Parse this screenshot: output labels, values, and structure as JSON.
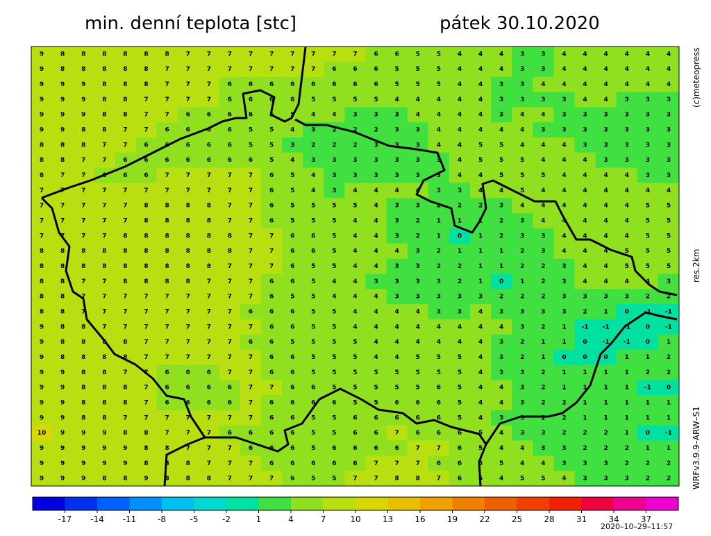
{
  "header": {
    "title": "min. denní teplota [stc]",
    "date": "pátek 30.10.2020"
  },
  "side_labels": {
    "copyright": "(c)meteopress",
    "resolution": "res.2km",
    "model": "WRFv3.9.9–ARW–S1"
  },
  "timestamp": "2020–10–29–11:57",
  "grid": {
    "values": [
      [
        9,
        8,
        8,
        8,
        8,
        8,
        8,
        7,
        7,
        7,
        7,
        7,
        7,
        7,
        7,
        7,
        6,
        6,
        5,
        5,
        4,
        4,
        4,
        3,
        3,
        4,
        4,
        4,
        4,
        4,
        4
      ],
      [
        9,
        8,
        8,
        8,
        8,
        8,
        7,
        7,
        7,
        7,
        7,
        7,
        7,
        7,
        6,
        6,
        6,
        5,
        5,
        5,
        4,
        4,
        4,
        3,
        3,
        4,
        4,
        4,
        4,
        4,
        4
      ],
      [
        9,
        9,
        9,
        8,
        8,
        8,
        7,
        7,
        7,
        6,
        6,
        6,
        6,
        6,
        6,
        6,
        6,
        5,
        5,
        5,
        4,
        4,
        3,
        3,
        4,
        4,
        4,
        4,
        4,
        4,
        4
      ],
      [
        9,
        9,
        9,
        8,
        8,
        7,
        7,
        7,
        7,
        6,
        6,
        6,
        6,
        5,
        5,
        5,
        5,
        4,
        4,
        4,
        4,
        4,
        3,
        3,
        3,
        3,
        4,
        4,
        3,
        3,
        3
      ],
      [
        9,
        9,
        9,
        8,
        8,
        7,
        7,
        6,
        6,
        6,
        6,
        5,
        5,
        4,
        4,
        3,
        3,
        3,
        4,
        4,
        4,
        4,
        3,
        4,
        4,
        3,
        3,
        3,
        3,
        3,
        3
      ],
      [
        9,
        9,
        8,
        8,
        7,
        7,
        6,
        6,
        6,
        6,
        5,
        5,
        4,
        3,
        2,
        2,
        2,
        3,
        3,
        4,
        4,
        4,
        4,
        4,
        3,
        3,
        3,
        3,
        3,
        3,
        3
      ],
      [
        8,
        8,
        8,
        7,
        7,
        6,
        6,
        6,
        6,
        6,
        5,
        5,
        3,
        2,
        2,
        2,
        3,
        3,
        3,
        4,
        4,
        5,
        5,
        4,
        4,
        4,
        3,
        3,
        3,
        3,
        3
      ],
      [
        8,
        8,
        7,
        7,
        6,
        6,
        6,
        6,
        6,
        6,
        6,
        5,
        4,
        3,
        3,
        3,
        3,
        3,
        3,
        3,
        4,
        5,
        5,
        5,
        4,
        4,
        4,
        3,
        3,
        3,
        3
      ],
      [
        8,
        7,
        7,
        6,
        6,
        6,
        7,
        7,
        7,
        7,
        7,
        6,
        5,
        4,
        3,
        3,
        3,
        3,
        3,
        3,
        4,
        4,
        5,
        5,
        5,
        4,
        4,
        4,
        4,
        3,
        3
      ],
      [
        7,
        7,
        7,
        7,
        7,
        7,
        7,
        7,
        7,
        7,
        7,
        6,
        5,
        4,
        3,
        4,
        4,
        4,
        4,
        3,
        3,
        4,
        4,
        5,
        4,
        4,
        4,
        4,
        4,
        4,
        4
      ],
      [
        7,
        7,
        7,
        7,
        7,
        8,
        8,
        8,
        8,
        7,
        7,
        6,
        5,
        5,
        5,
        5,
        4,
        3,
        3,
        2,
        2,
        2,
        3,
        4,
        4,
        4,
        4,
        4,
        4,
        5,
        5
      ],
      [
        7,
        7,
        7,
        7,
        7,
        8,
        8,
        8,
        8,
        7,
        7,
        6,
        5,
        5,
        5,
        4,
        4,
        3,
        2,
        1,
        1,
        1,
        2,
        3,
        4,
        4,
        4,
        4,
        4,
        5,
        5
      ],
      [
        7,
        7,
        7,
        7,
        8,
        8,
        8,
        8,
        8,
        8,
        7,
        7,
        6,
        6,
        5,
        4,
        4,
        3,
        2,
        1,
        0,
        1,
        2,
        3,
        3,
        4,
        4,
        4,
        4,
        5,
        5
      ],
      [
        8,
        8,
        8,
        8,
        8,
        8,
        8,
        8,
        8,
        8,
        7,
        7,
        6,
        6,
        5,
        4,
        4,
        4,
        3,
        2,
        1,
        1,
        1,
        2,
        3,
        4,
        4,
        4,
        5,
        5,
        5
      ],
      [
        8,
        8,
        8,
        8,
        8,
        8,
        8,
        8,
        8,
        7,
        7,
        7,
        6,
        5,
        5,
        4,
        4,
        3,
        3,
        2,
        2,
        1,
        1,
        2,
        2,
        3,
        4,
        4,
        5,
        5,
        5
      ],
      [
        8,
        8,
        7,
        7,
        8,
        8,
        8,
        8,
        7,
        7,
        7,
        6,
        6,
        5,
        4,
        4,
        3,
        3,
        3,
        3,
        2,
        1,
        0,
        1,
        2,
        3,
        4,
        4,
        4,
        4,
        3
      ],
      [
        8,
        8,
        7,
        7,
        7,
        7,
        7,
        7,
        7,
        7,
        7,
        6,
        5,
        5,
        4,
        4,
        4,
        3,
        3,
        3,
        3,
        3,
        2,
        2,
        2,
        3,
        3,
        3,
        3,
        2,
        2
      ],
      [
        8,
        8,
        7,
        7,
        7,
        7,
        7,
        7,
        7,
        7,
        6,
        6,
        6,
        5,
        5,
        4,
        4,
        4,
        4,
        3,
        3,
        4,
        3,
        3,
        3,
        3,
        2,
        1,
        0,
        -1,
        -1
      ],
      [
        9,
        8,
        8,
        7,
        7,
        7,
        7,
        7,
        7,
        7,
        7,
        6,
        6,
        5,
        5,
        4,
        4,
        4,
        4,
        4,
        4,
        4,
        4,
        3,
        2,
        1,
        -1,
        -1,
        -1,
        0,
        -1
      ],
      [
        9,
        8,
        8,
        8,
        8,
        7,
        7,
        7,
        7,
        7,
        6,
        6,
        5,
        5,
        5,
        5,
        4,
        4,
        4,
        4,
        4,
        4,
        3,
        2,
        1,
        1,
        0,
        -1,
        -1,
        0,
        1
      ],
      [
        9,
        8,
        8,
        8,
        8,
        7,
        7,
        7,
        7,
        7,
        7,
        6,
        6,
        5,
        5,
        5,
        4,
        4,
        5,
        5,
        5,
        4,
        3,
        2,
        1,
        0,
        0,
        0,
        1,
        1,
        2
      ],
      [
        9,
        9,
        8,
        8,
        7,
        7,
        6,
        6,
        6,
        7,
        7,
        6,
        6,
        5,
        5,
        5,
        5,
        5,
        5,
        5,
        5,
        4,
        3,
        3,
        2,
        1,
        1,
        1,
        1,
        2,
        2
      ],
      [
        9,
        9,
        8,
        8,
        8,
        7,
        6,
        6,
        6,
        6,
        7,
        7,
        6,
        6,
        5,
        5,
        5,
        5,
        5,
        6,
        5,
        4,
        4,
        3,
        2,
        1,
        1,
        1,
        1,
        -1,
        0
      ],
      [
        9,
        9,
        8,
        8,
        8,
        7,
        6,
        6,
        6,
        6,
        7,
        6,
        6,
        6,
        6,
        5,
        5,
        6,
        6,
        6,
        5,
        4,
        4,
        3,
        2,
        2,
        1,
        1,
        1,
        1,
        1
      ],
      [
        9,
        9,
        8,
        8,
        7,
        7,
        7,
        7,
        7,
        7,
        7,
        6,
        6,
        5,
        5,
        6,
        6,
        6,
        6,
        6,
        5,
        4,
        3,
        3,
        2,
        2,
        1,
        1,
        1,
        1,
        1
      ],
      [
        10,
        9,
        9,
        9,
        8,
        8,
        7,
        7,
        7,
        6,
        6,
        6,
        6,
        5,
        5,
        6,
        6,
        7,
        6,
        6,
        6,
        5,
        4,
        3,
        3,
        2,
        2,
        2,
        1,
        0,
        -1
      ],
      [
        9,
        9,
        9,
        9,
        9,
        8,
        8,
        7,
        7,
        7,
        6,
        6,
        6,
        5,
        6,
        6,
        6,
        6,
        7,
        7,
        6,
        5,
        4,
        4,
        3,
        3,
        2,
        2,
        2,
        1,
        1
      ],
      [
        9,
        9,
        9,
        9,
        9,
        8,
        8,
        8,
        7,
        7,
        7,
        6,
        6,
        6,
        6,
        6,
        7,
        7,
        7,
        6,
        6,
        5,
        5,
        4,
        4,
        3,
        3,
        3,
        2,
        2,
        2
      ],
      [
        9,
        9,
        9,
        8,
        8,
        9,
        8,
        8,
        8,
        7,
        7,
        7,
        6,
        5,
        5,
        7,
        7,
        8,
        8,
        7,
        6,
        5,
        4,
        5,
        5,
        4,
        3,
        3,
        3,
        2,
        2
      ]
    ]
  },
  "colorbar": {
    "range": [
      -20,
      40
    ],
    "colors": [
      "#0000e0",
      "#0030f0",
      "#0060ff",
      "#0090ff",
      "#00c0f0",
      "#00d8d0",
      "#00e0a0",
      "#40e040",
      "#90e020",
      "#b8e010",
      "#d8d800",
      "#e8c000",
      "#f0a000",
      "#f08000",
      "#f06000",
      "#f04000",
      "#f02000",
      "#f00040",
      "#f00090",
      "#f000d0"
    ],
    "ticks": [
      -17,
      -14,
      -11,
      -8,
      -5,
      -2,
      1,
      4,
      7,
      10,
      13,
      16,
      19,
      22,
      25,
      28,
      31,
      34,
      37
    ]
  }
}
